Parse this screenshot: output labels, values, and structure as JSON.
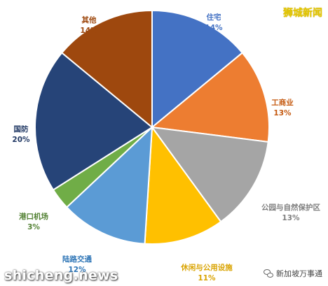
{
  "brand": "狮城新闻",
  "watermark_left": "shicheng.news",
  "watermark_right": "新加坡万事通",
  "icons": {
    "wechat": "wechat-icon"
  },
  "chart_data": {
    "type": "pie",
    "title": "",
    "slices": [
      {
        "label": "住宅",
        "value": 14,
        "value_label": "14%",
        "color": "#4472c4",
        "label_color": "#4472c4"
      },
      {
        "label": "工商业",
        "value": 13,
        "value_label": "13%",
        "color": "#ed7d31",
        "label_color": "#c55a11"
      },
      {
        "label": "公园与自然保护区",
        "value": 13,
        "value_label": "13%",
        "color": "#a5a5a5",
        "label_color": "#7f7f7f"
      },
      {
        "label": "休闲与公用设施",
        "value": 11,
        "value_label": "11%",
        "color": "#ffc000",
        "label_color": "#d9a300"
      },
      {
        "label": "陆路交通",
        "value": 12,
        "value_label": "12%",
        "color": "#5b9bd5",
        "label_color": "#2e75b6"
      },
      {
        "label": "港口机场",
        "value": 3,
        "value_label": "3%",
        "color": "#70ad47",
        "label_color": "#548235"
      },
      {
        "label": "国防",
        "value": 20,
        "value_label": "20%",
        "color": "#264478",
        "label_color": "#203864"
      },
      {
        "label": "其他",
        "value": 14,
        "value_label": "14%",
        "color": "#9e480e",
        "label_color": "#9e480e"
      }
    ]
  }
}
